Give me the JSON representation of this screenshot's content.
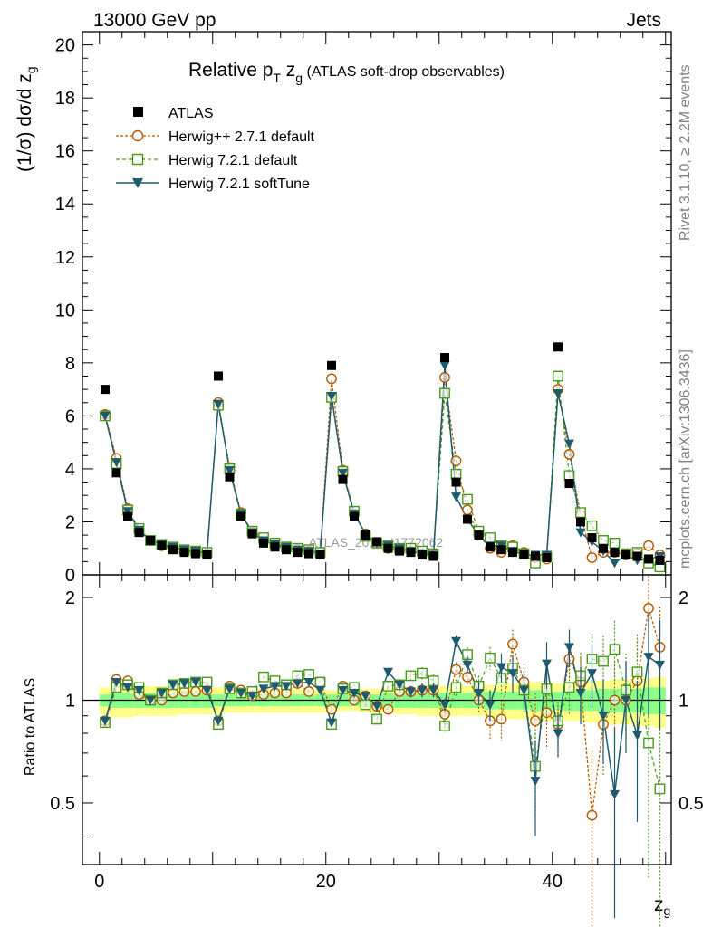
{
  "header": {
    "energy_label": "13000 GeV pp",
    "process_label": "Jets"
  },
  "side_text": {
    "rivet": "Rivet 3.1.10, ≥ 2.2M events",
    "mcplots": "mcplots.cern.ch [arXiv:1306.3436]"
  },
  "watermark": "ATLAS_2019_I1772062",
  "colors": {
    "atlas": "#000000",
    "herwigpp": "#b35900",
    "herwig721": "#4a9a1a",
    "softtune": "#1f5a6e",
    "band_outer": "#ffff88",
    "band_inner": "#88ff88"
  },
  "chart_data": [
    {
      "type": "scatter",
      "title_main": "Relative p",
      "title_sub_T": "T",
      "title_z": " z",
      "title_sub_g": "g",
      "title_rest": " (ATLAS soft-drop observables)",
      "ylabel": "(1/σ) dσ/d z",
      "ylabel_sub": "g",
      "ylim": [
        0,
        20.5
      ],
      "xlim": [
        -1.5,
        50.5
      ],
      "yticks": [
        0,
        2,
        4,
        6,
        8,
        10,
        12,
        14,
        16,
        18,
        20
      ],
      "x": [
        0.5,
        1.5,
        2.5,
        3.5,
        4.5,
        5.5,
        6.5,
        7.5,
        8.5,
        9.5,
        10.5,
        11.5,
        12.5,
        13.5,
        14.5,
        15.5,
        16.5,
        17.5,
        18.5,
        19.5,
        20.5,
        21.5,
        22.5,
        23.5,
        24.5,
        25.5,
        26.5,
        27.5,
        28.5,
        29.5,
        30.5,
        31.5,
        32.5,
        33.5,
        34.5,
        35.5,
        36.5,
        37.5,
        38.5,
        39.5,
        40.5,
        41.5,
        42.5,
        43.5,
        44.5,
        45.5,
        46.5,
        47.5,
        48.5,
        49.5
      ],
      "series": [
        {
          "name": "ATLAS",
          "marker": "square-filled",
          "values": [
            7.0,
            3.85,
            2.2,
            1.6,
            1.3,
            1.1,
            0.95,
            0.85,
            0.8,
            0.75,
            7.5,
            3.7,
            2.2,
            1.55,
            1.2,
            1.05,
            0.95,
            0.85,
            0.8,
            0.75,
            7.9,
            3.6,
            2.2,
            1.5,
            1.25,
            1.0,
            0.9,
            0.85,
            0.75,
            0.7,
            8.2,
            3.5,
            2.1,
            1.5,
            1.05,
            0.95,
            0.85,
            0.75,
            0.7,
            0.65,
            8.6,
            3.45,
            2.0,
            1.4,
            1.0,
            0.85,
            0.75,
            0.7,
            0.6,
            0.55
          ]
        },
        {
          "name": "Herwig++ 2.7.1 default",
          "marker": "circle-open",
          "values": [
            6.05,
            4.4,
            2.5,
            1.65,
            1.3,
            1.1,
            1.0,
            0.9,
            0.85,
            0.8,
            6.5,
            4.05,
            2.35,
            1.6,
            1.25,
            1.1,
            1.0,
            0.95,
            0.9,
            0.85,
            7.4,
            3.95,
            2.3,
            1.55,
            1.2,
            1.0,
            0.95,
            0.9,
            0.8,
            0.75,
            7.45,
            4.3,
            2.45,
            1.5,
            1.0,
            0.85,
            1.1,
            0.85,
            0.65,
            0.6,
            7.0,
            4.55,
            2.25,
            0.65,
            0.85,
            0.85,
            0.75,
            0.8,
            1.1,
            0.75
          ]
        },
        {
          "name": "Herwig 7.2.1 default",
          "marker": "square-open",
          "values": [
            6.0,
            4.2,
            2.45,
            1.75,
            1.3,
            1.15,
            1.05,
            0.95,
            0.9,
            0.85,
            6.4,
            4.0,
            2.3,
            1.65,
            1.4,
            1.2,
            1.05,
            1.0,
            0.95,
            0.85,
            6.7,
            3.9,
            2.4,
            1.45,
            1.2,
            1.1,
            1.0,
            1.0,
            0.9,
            0.8,
            6.85,
            3.8,
            2.85,
            1.65,
            1.4,
            1.1,
            1.05,
            0.8,
            0.45,
            0.7,
            7.5,
            3.75,
            2.35,
            1.85,
            1.3,
            1.2,
            0.8,
            0.85,
            0.45,
            0.3
          ]
        },
        {
          "name": "Herwig 7.2.1 softTune",
          "marker": "triangle-filled",
          "values": [
            6.0,
            4.25,
            2.4,
            1.7,
            1.3,
            1.15,
            1.05,
            0.95,
            0.9,
            0.8,
            6.45,
            3.95,
            2.3,
            1.6,
            1.3,
            1.15,
            1.05,
            0.95,
            0.9,
            0.8,
            6.75,
            3.85,
            2.3,
            1.55,
            1.2,
            1.1,
            1.0,
            0.9,
            0.8,
            0.75,
            7.9,
            2.95,
            2.1,
            1.5,
            1.1,
            1.1,
            0.9,
            0.75,
            0.75,
            0.75,
            6.85,
            4.95,
            1.6,
            1.25,
            0.9,
            0.45,
            0.75,
            0.55,
            0.6,
            0.7
          ]
        }
      ]
    },
    {
      "type": "scatter",
      "ylabel": "Ratio to ATLAS",
      "xlabel": "z",
      "xlabel_sub": "g",
      "ylim": [
        0.33,
        2.33
      ],
      "xlim": [
        -1.5,
        50.5
      ],
      "yticks": [
        0.5,
        1,
        2
      ],
      "xticks": [
        0,
        20,
        40
      ],
      "x": [
        0.5,
        1.5,
        2.5,
        3.5,
        4.5,
        5.5,
        6.5,
        7.5,
        8.5,
        9.5,
        10.5,
        11.5,
        12.5,
        13.5,
        14.5,
        15.5,
        16.5,
        17.5,
        18.5,
        19.5,
        20.5,
        21.5,
        22.5,
        23.5,
        24.5,
        25.5,
        26.5,
        27.5,
        28.5,
        29.5,
        30.5,
        31.5,
        32.5,
        33.5,
        34.5,
        35.5,
        36.5,
        37.5,
        38.5,
        39.5,
        40.5,
        41.5,
        42.5,
        43.5,
        44.5,
        45.5,
        46.5,
        47.5,
        48.5,
        49.5
      ],
      "band_outer": [
        0.09,
        0.11,
        0.11,
        0.1,
        0.1,
        0.1,
        0.1,
        0.09,
        0.09,
        0.09,
        0.09,
        0.08,
        0.08,
        0.08,
        0.08,
        0.08,
        0.08,
        0.08,
        0.08,
        0.08,
        0.07,
        0.07,
        0.07,
        0.08,
        0.08,
        0.08,
        0.09,
        0.09,
        0.1,
        0.1,
        0.1,
        0.1,
        0.1,
        0.1,
        0.11,
        0.11,
        0.12,
        0.12,
        0.13,
        0.13,
        0.12,
        0.13,
        0.13,
        0.14,
        0.14,
        0.15,
        0.15,
        0.16,
        0.16,
        0.17
      ],
      "band_inner": [
        0.04,
        0.05,
        0.05,
        0.05,
        0.05,
        0.05,
        0.05,
        0.05,
        0.05,
        0.05,
        0.04,
        0.04,
        0.04,
        0.04,
        0.04,
        0.04,
        0.04,
        0.04,
        0.04,
        0.04,
        0.04,
        0.04,
        0.04,
        0.04,
        0.04,
        0.05,
        0.05,
        0.05,
        0.05,
        0.05,
        0.05,
        0.05,
        0.05,
        0.05,
        0.06,
        0.06,
        0.06,
        0.06,
        0.07,
        0.07,
        0.06,
        0.07,
        0.07,
        0.07,
        0.08,
        0.08,
        0.08,
        0.08,
        0.09,
        0.09
      ],
      "series": [
        {
          "name": "Herwig++ 2.7.1 default",
          "values": [
            0.87,
            1.15,
            1.14,
            1.04,
            1.0,
            1.0,
            1.05,
            1.06,
            1.06,
            1.07,
            0.87,
            1.1,
            1.07,
            1.03,
            1.04,
            1.05,
            1.05,
            1.12,
            1.06,
            1.13,
            0.94,
            1.1,
            1.0,
            1.03,
            0.96,
            0.94,
            1.06,
            1.06,
            1.07,
            1.07,
            0.91,
            1.23,
            1.17,
            1.0,
            0.87,
            0.88,
            1.46,
            1.13,
            0.87,
            0.92,
            0.85,
            1.32,
            1.13,
            0.46,
            0.85,
            1.0,
            1.0,
            1.14,
            1.86,
            1.43
          ],
          "err": [
            0.01,
            0.01,
            0.01,
            0.01,
            0.01,
            0.01,
            0.01,
            0.01,
            0.01,
            0.01,
            0.01,
            0.01,
            0.01,
            0.01,
            0.01,
            0.01,
            0.01,
            0.01,
            0.01,
            0.01,
            0.02,
            0.02,
            0.02,
            0.02,
            0.03,
            0.03,
            0.04,
            0.04,
            0.05,
            0.05,
            0.04,
            0.06,
            0.07,
            0.08,
            0.1,
            0.12,
            0.15,
            0.15,
            0.18,
            0.2,
            0.12,
            0.18,
            0.2,
            0.25,
            0.25,
            0.3,
            0.3,
            0.35,
            0.45,
            0.45
          ]
        },
        {
          "name": "Herwig 7.2.1 default",
          "values": [
            0.86,
            1.09,
            1.11,
            1.09,
            1.0,
            1.05,
            1.11,
            1.12,
            1.13,
            1.13,
            0.85,
            1.08,
            1.05,
            1.06,
            1.17,
            1.14,
            1.11,
            1.18,
            1.19,
            1.13,
            0.85,
            1.08,
            1.09,
            0.97,
            0.88,
            1.1,
            1.11,
            1.18,
            1.2,
            1.14,
            0.84,
            1.09,
            1.36,
            1.1,
            1.33,
            1.16,
            1.24,
            1.07,
            0.64,
            1.08,
            0.87,
            1.09,
            1.18,
            1.32,
            1.3,
            1.41,
            1.07,
            1.21,
            0.75,
            0.55
          ],
          "err": [
            0.01,
            0.01,
            0.01,
            0.01,
            0.01,
            0.01,
            0.01,
            0.01,
            0.01,
            0.01,
            0.01,
            0.01,
            0.01,
            0.01,
            0.01,
            0.01,
            0.01,
            0.01,
            0.01,
            0.01,
            0.02,
            0.02,
            0.02,
            0.02,
            0.03,
            0.03,
            0.04,
            0.04,
            0.05,
            0.05,
            0.04,
            0.06,
            0.07,
            0.08,
            0.1,
            0.12,
            0.15,
            0.15,
            0.18,
            0.2,
            0.12,
            0.18,
            0.2,
            0.25,
            0.25,
            0.3,
            0.3,
            0.35,
            0.45,
            0.45
          ]
        },
        {
          "name": "Herwig 7.2.1 softTune",
          "values": [
            0.87,
            1.13,
            1.09,
            1.07,
            1.0,
            1.05,
            1.11,
            1.12,
            1.13,
            1.07,
            0.87,
            1.08,
            1.05,
            1.03,
            1.08,
            1.1,
            1.1,
            1.12,
            1.13,
            1.07,
            0.86,
            1.07,
            1.05,
            1.03,
            0.96,
            1.21,
            1.11,
            1.06,
            1.07,
            1.07,
            0.97,
            1.49,
            1.27,
            1.05,
            0.97,
            1.25,
            1.2,
            1.07,
            0.58,
            1.28,
            0.8,
            1.43,
            1.05,
            1.2,
            0.9,
            0.53,
            1.0,
            0.79,
            1.34,
            1.27
          ],
          "err": [
            0.01,
            0.01,
            0.01,
            0.01,
            0.01,
            0.01,
            0.01,
            0.01,
            0.01,
            0.01,
            0.01,
            0.01,
            0.01,
            0.01,
            0.01,
            0.01,
            0.01,
            0.01,
            0.01,
            0.01,
            0.02,
            0.02,
            0.02,
            0.02,
            0.03,
            0.03,
            0.04,
            0.04,
            0.05,
            0.05,
            0.04,
            0.06,
            0.07,
            0.08,
            0.1,
            0.12,
            0.15,
            0.15,
            0.18,
            0.2,
            0.12,
            0.18,
            0.2,
            0.25,
            0.25,
            0.3,
            0.3,
            0.35,
            0.45,
            0.45
          ]
        }
      ]
    }
  ]
}
